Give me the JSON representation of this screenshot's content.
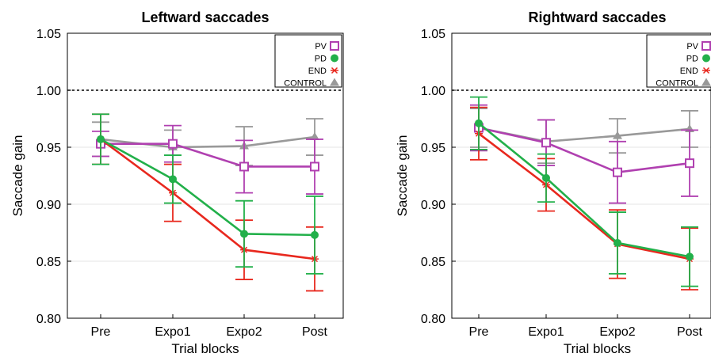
{
  "chart_data": [
    {
      "type": "line",
      "title": "Leftward saccades",
      "xlabel": "Trial blocks",
      "ylabel": "Saccade gain",
      "categories": [
        "Pre",
        "Expo1",
        "Expo2",
        "Post"
      ],
      "ylim": [
        0.8,
        1.05
      ],
      "yticks": [
        "0.80",
        "0.85",
        "0.90",
        "0.95",
        "1.00",
        "1.05"
      ],
      "reference_line": 1.0,
      "grid": "horizontal",
      "legend_position": "top-right",
      "series": [
        {
          "name": "PV",
          "color": "#b040b0",
          "marker": "square",
          "values": [
            0.953,
            0.953,
            0.933,
            0.933
          ],
          "err": [
            0.011,
            0.016,
            0.023,
            0.024
          ]
        },
        {
          "name": "PD",
          "color": "#22b04a",
          "marker": "circle",
          "values": [
            0.957,
            0.922,
            0.874,
            0.873
          ],
          "err": [
            0.022,
            0.021,
            0.029,
            0.034
          ]
        },
        {
          "name": "END",
          "color": "#e8281e",
          "marker": "asterisk",
          "values": [
            0.957,
            0.91,
            0.86,
            0.852
          ],
          "err": [
            0.022,
            0.025,
            0.026,
            0.028
          ]
        },
        {
          "name": "CONTROL",
          "color": "#999999",
          "marker": "triangle",
          "values": [
            0.957,
            0.95,
            0.951,
            0.959
          ],
          "err": [
            0.015,
            0.015,
            0.017,
            0.016
          ]
        }
      ]
    },
    {
      "type": "line",
      "title": "Rightward saccades",
      "xlabel": "Trial blocks",
      "ylabel": "Saccade gain",
      "categories": [
        "Pre",
        "Expo1",
        "Expo2",
        "Post"
      ],
      "ylim": [
        0.8,
        1.05
      ],
      "yticks": [
        "0.80",
        "0.85",
        "0.90",
        "0.95",
        "1.00",
        "1.05"
      ],
      "reference_line": 1.0,
      "grid": "horizontal",
      "legend_position": "top-right",
      "series": [
        {
          "name": "PV",
          "color": "#b040b0",
          "marker": "square",
          "values": [
            0.967,
            0.954,
            0.928,
            0.936
          ],
          "err": [
            0.02,
            0.02,
            0.027,
            0.029
          ]
        },
        {
          "name": "PD",
          "color": "#22b04a",
          "marker": "circle",
          "values": [
            0.971,
            0.923,
            0.866,
            0.854
          ],
          "err": [
            0.023,
            0.021,
            0.027,
            0.026
          ]
        },
        {
          "name": "END",
          "color": "#e8281e",
          "marker": "asterisk",
          "values": [
            0.962,
            0.917,
            0.865,
            0.852
          ],
          "err": [
            0.023,
            0.023,
            0.03,
            0.027
          ]
        },
        {
          "name": "CONTROL",
          "color": "#999999",
          "marker": "triangle",
          "values": [
            0.967,
            0.955,
            0.96,
            0.966
          ],
          "err": [
            0.017,
            0.019,
            0.015,
            0.016
          ]
        }
      ]
    }
  ]
}
